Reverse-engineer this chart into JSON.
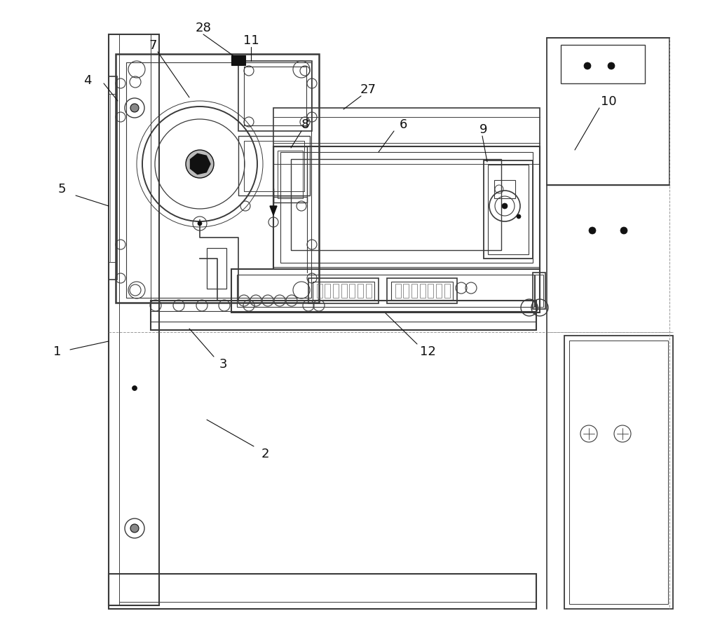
{
  "bg_color": "#ffffff",
  "lc": "#3a3a3a",
  "dc": "#111111",
  "gc": "#666666",
  "thin": 0.6,
  "med": 1.0,
  "thick": 1.5,
  "labels_fs": 13
}
